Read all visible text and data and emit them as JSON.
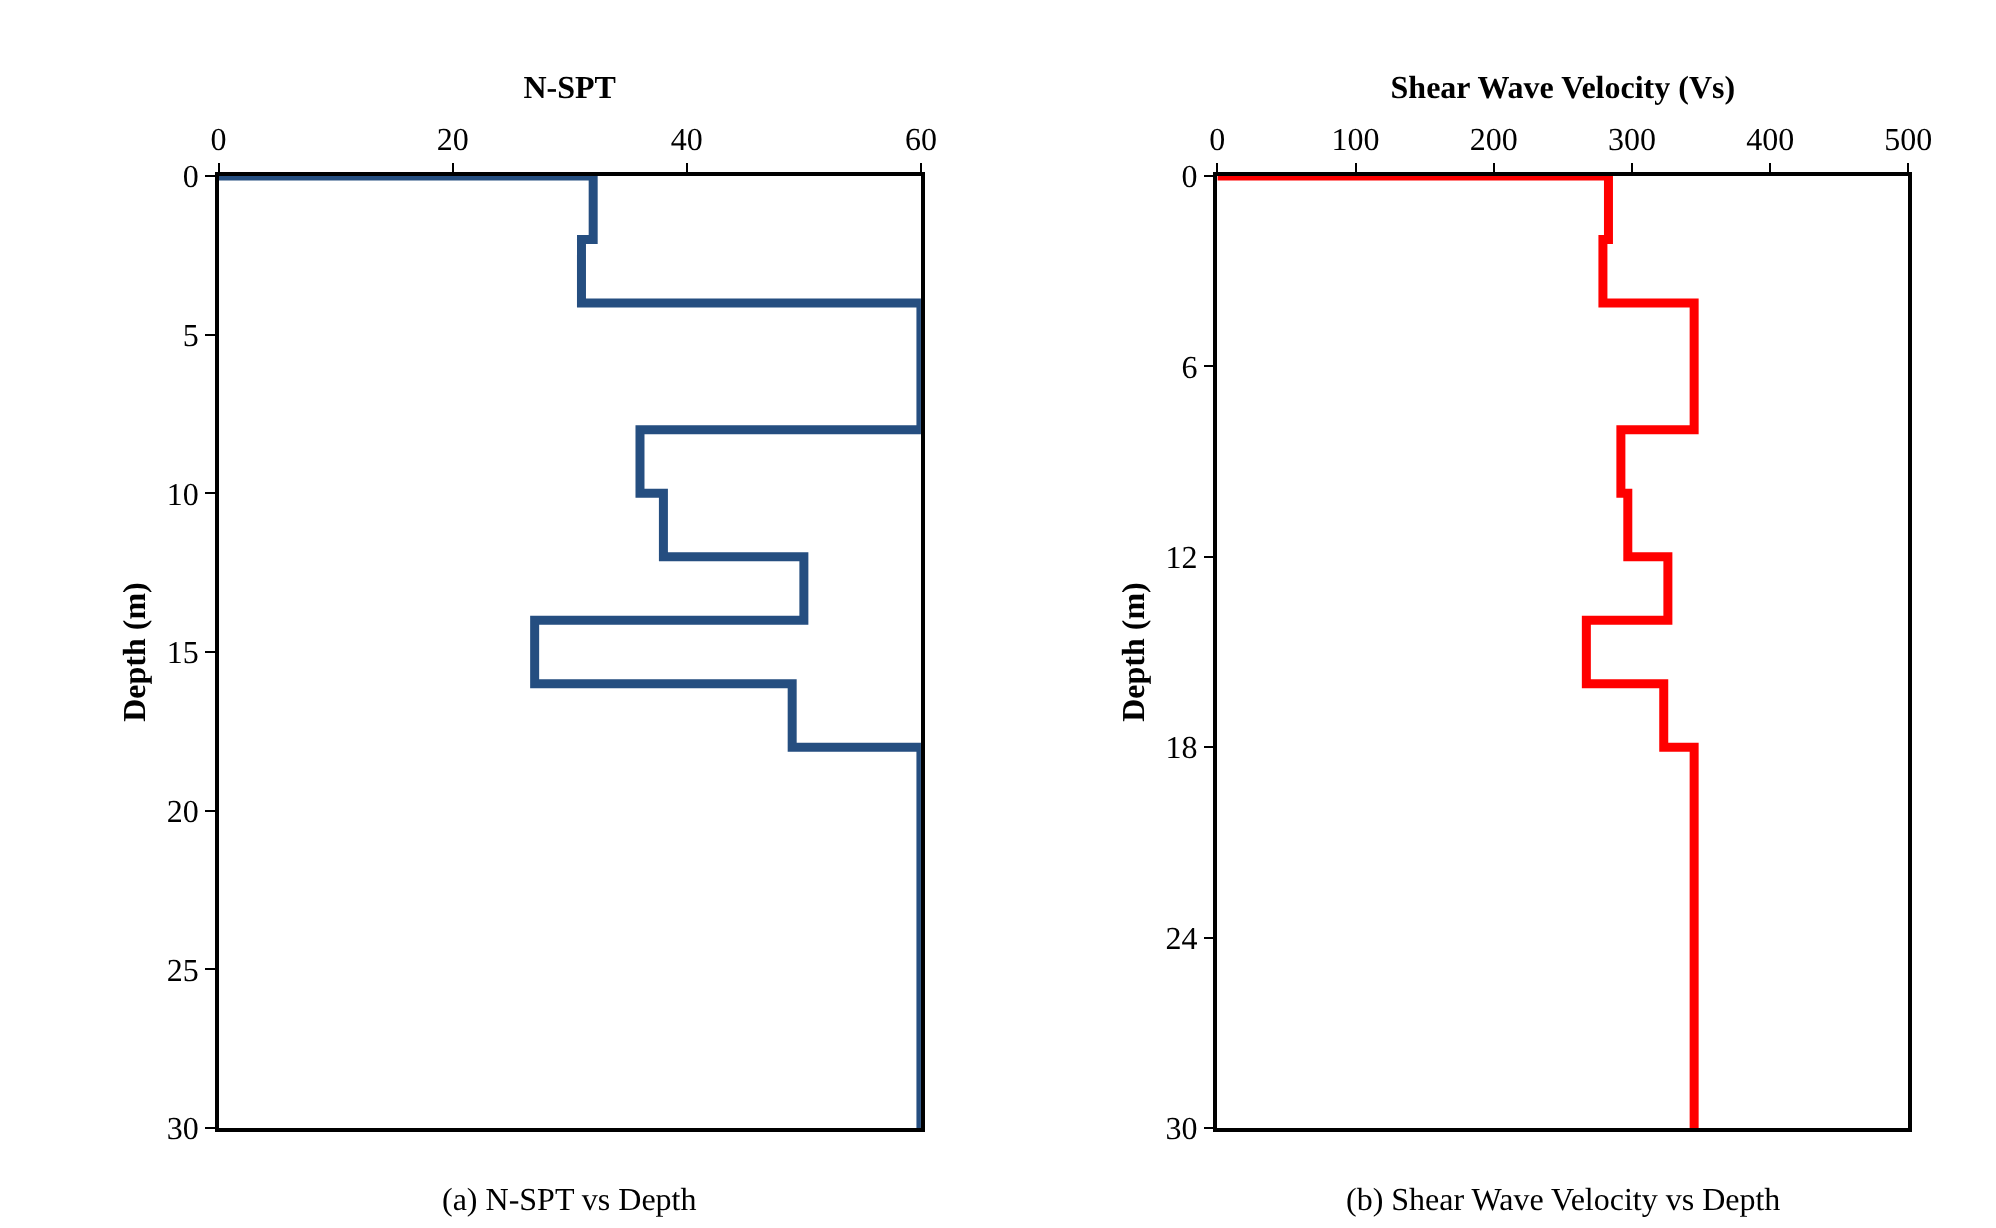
{
  "chart_data": [
    {
      "type": "line",
      "title": "N-SPT",
      "ylabel": "Depth (m)",
      "annotations": [
        "(a) N-SPT vs Depth"
      ],
      "xlim": [
        0,
        60
      ],
      "xticks": [
        0,
        20,
        40,
        60
      ],
      "ylim": [
        30,
        0
      ],
      "yticks": [
        0,
        5,
        10,
        15,
        20,
        25,
        30
      ],
      "marker": "none",
      "line_style": "solid",
      "series": [
        {
          "color": "#254e80",
          "x": [
            0,
            32,
            32,
            31,
            31,
            60,
            60,
            36,
            36,
            38,
            38,
            50,
            50,
            27,
            27,
            49,
            49,
            60,
            60
          ],
          "values": [
            0,
            0,
            2,
            2,
            4,
            4,
            8,
            8,
            10,
            10,
            12,
            12,
            14,
            14,
            16,
            16,
            18,
            18,
            30
          ]
        }
      ]
    },
    {
      "type": "line",
      "title": "Shear Wave Velocity (Vs)",
      "ylabel": "Depth (m)",
      "annotations": [
        "(b) Shear Wave Velocity vs Depth"
      ],
      "xlim": [
        0,
        500
      ],
      "xticks": [
        0,
        100,
        200,
        300,
        400,
        500
      ],
      "ylim": [
        30,
        0
      ],
      "yticks": [
        0,
        6,
        12,
        18,
        24,
        30
      ],
      "marker": "none",
      "line_style": "solid",
      "series": [
        {
          "color": "#ff0000",
          "x": [
            0,
            283,
            283,
            279,
            279,
            345,
            345,
            292,
            292,
            297,
            297,
            326,
            326,
            267,
            267,
            323,
            323,
            345,
            345
          ],
          "values": [
            0,
            0,
            2,
            2,
            4,
            4,
            8,
            8,
            10,
            10,
            12,
            12,
            14,
            14,
            16,
            16,
            18,
            18,
            30
          ]
        }
      ]
    }
  ]
}
